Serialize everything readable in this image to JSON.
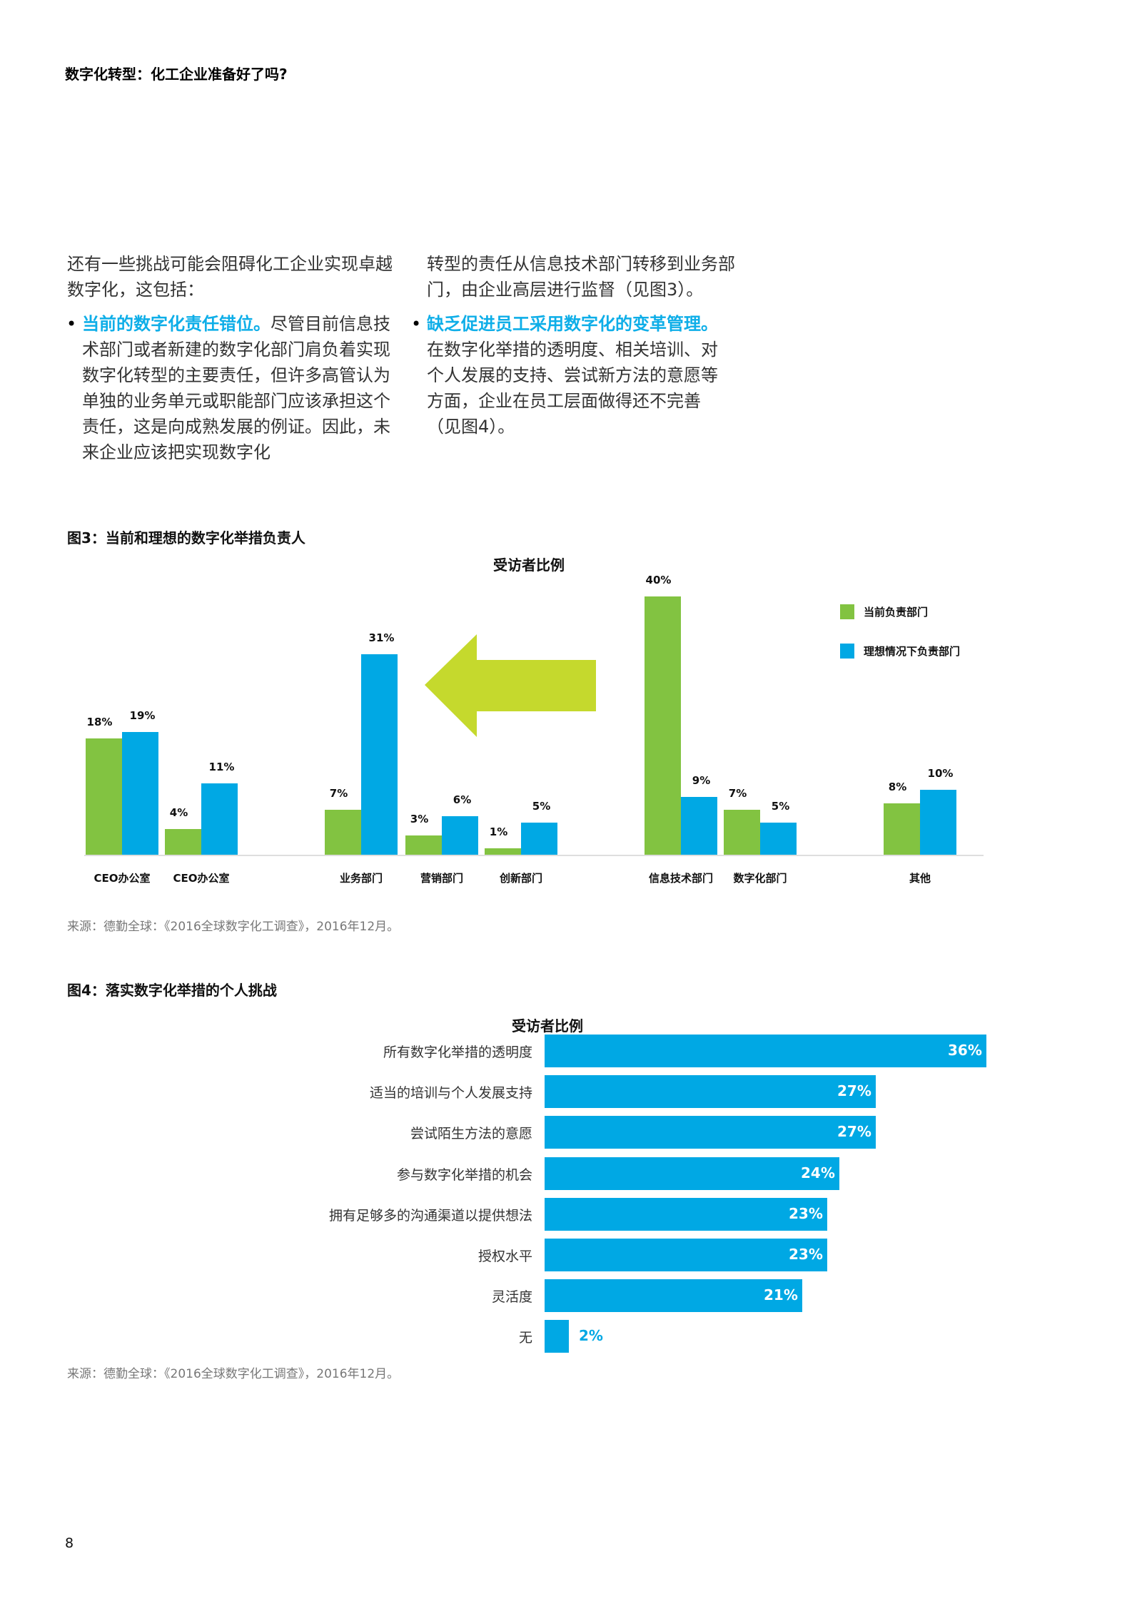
{
  "header": {
    "title": "数字化转型：化工企业准备好了吗?"
  },
  "intro": {
    "paragraph": "还有一些挑战可能会阻碍化工企业实现卓越数字化，这包括：",
    "bullets": [
      {
        "highlight": "当前的数字化责任错位。",
        "text": "尽管目前信息技术部门或者新建的数字化部门肩负着实现数字化转型的主要责任，但许多高管认为单独的业务单元或职能部门应该承担这个责任，这是向成熟发展的例证。因此，未来企业应该把实现数字化"
      },
      {
        "highlight": "缺乏促进员工采用数字化的变革管理。",
        "text": " 在数字化举措的透明度、相关培训、对个人发展的支持、尝试新方法的意愿等方面，企业在员工层面做得还不完善（见图4）。"
      }
    ],
    "continuation": "转型的责任从信息技术部门转移到业务部门，由企业高层进行监督（见图3）。"
  },
  "figure3": {
    "title": "图3：当前和理想的数字化举措负责人",
    "subtitle": "受访者比例",
    "source": "来源：德勤全球：《2016全球数字化工调查》，2016年12月。",
    "legend": [
      {
        "label": "当前负责部门",
        "color": "#82c341"
      },
      {
        "label": "理想情况下负责部门",
        "color": "#00a8e4"
      }
    ],
    "arrow": {
      "direction": "left",
      "color": "#c5d92d"
    }
  },
  "figure4": {
    "title": "图4：落实数字化举措的个人挑战",
    "subtitle": "受访者比例",
    "source": "来源：德勤全球：《2016全球数字化工调查》，2016年12月。"
  },
  "page_number": "8",
  "chart_data": [
    {
      "type": "bar",
      "title": "图3：当前和理想的数字化举措负责人",
      "subtitle": "受访者比例",
      "categories": [
        "CEO办公室",
        "CEO办公室",
        "业务部门",
        "营销部门",
        "创新部门",
        "信息技术部门",
        "数字化部门",
        "其他"
      ],
      "series": [
        {
          "name": "当前负责部门",
          "color": "#82c341",
          "values": [
            18,
            4,
            7,
            3,
            1,
            40,
            7,
            8
          ],
          "labels": [
            "18%",
            "4%",
            "7%",
            "3%",
            "1%",
            "40%",
            "7%",
            "8%"
          ]
        },
        {
          "name": "理想情况下负责部门",
          "color": "#00a8e4",
          "values": [
            19,
            11,
            31,
            6,
            5,
            9,
            5,
            10
          ],
          "labels": [
            "19%",
            "11%",
            "31%",
            "6%",
            "5%",
            "9%",
            "5%",
            "10%"
          ]
        }
      ],
      "xlabel": "",
      "ylabel": "受访者比例",
      "ylim": [
        0,
        40
      ],
      "grid": false,
      "legend_position": "top-right"
    },
    {
      "type": "bar",
      "orientation": "horizontal",
      "title": "图4：落实数字化举措的个人挑战",
      "subtitle": "受访者比例",
      "categories": [
        "所有数字化举措的透明度",
        "适当的培训与个人发展支持",
        "尝试陌生方法的意愿",
        "参与数字化举措的机会",
        "拥有足够多的沟通渠道以提供想法",
        "授权水平",
        "灵活度",
        "无"
      ],
      "values": [
        36,
        27,
        27,
        24,
        23,
        23,
        21,
        2
      ],
      "labels": [
        "36%",
        "27%",
        "27%",
        "24%",
        "23%",
        "23%",
        "21%",
        "2%"
      ],
      "color": "#00a8e4",
      "xlabel": "受访者比例",
      "ylabel": "",
      "xlim": [
        0,
        36
      ],
      "grid": false
    }
  ]
}
